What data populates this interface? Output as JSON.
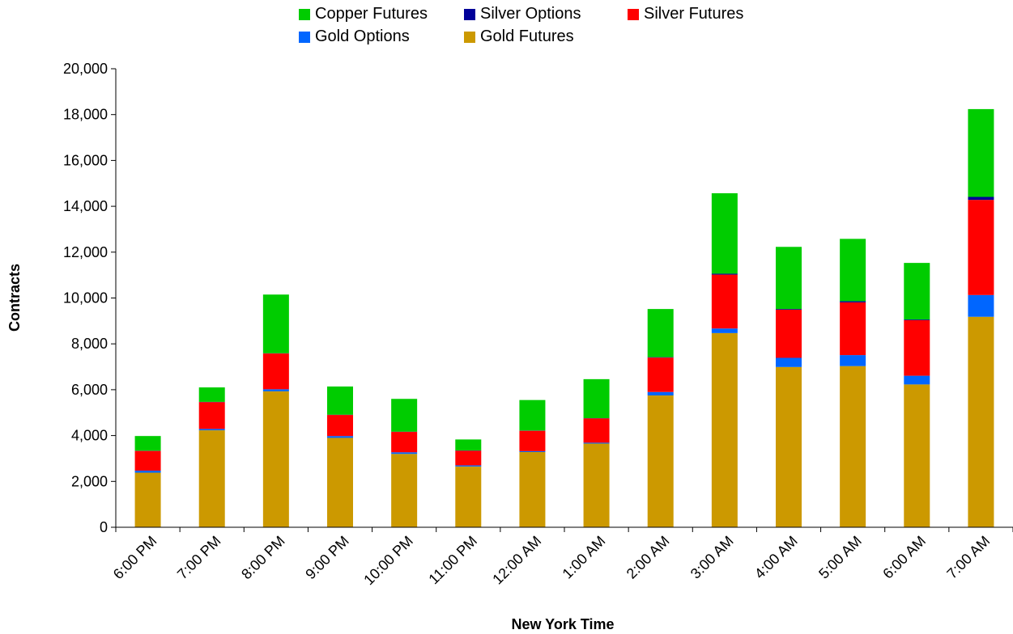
{
  "chart_data": {
    "type": "bar",
    "stacked": true,
    "categories": [
      "6:00 PM",
      "7:00 PM",
      "8:00 PM",
      "9:00 PM",
      "10:00 PM",
      "11:00 PM",
      "12:00 AM",
      "1:00 AM",
      "2:00 AM",
      "3:00 AM",
      "4:00 AM",
      "5:00 AM",
      "6:00 AM",
      "7:00 AM"
    ],
    "series": [
      {
        "name": "Gold Futures",
        "color": "#CC9900",
        "values": [
          2380,
          4230,
          5930,
          3900,
          3200,
          2650,
          3280,
          3650,
          5750,
          8470,
          6990,
          7030,
          6230,
          9180
        ]
      },
      {
        "name": "Gold Options",
        "color": "#0066FF",
        "values": [
          90,
          60,
          90,
          80,
          70,
          50,
          40,
          40,
          150,
          200,
          400,
          480,
          380,
          950
        ]
      },
      {
        "name": "Silver Futures",
        "color": "#FF0000",
        "values": [
          860,
          1170,
          1560,
          920,
          890,
          640,
          890,
          1060,
          1500,
          2350,
          2100,
          2300,
          2420,
          4150
        ]
      },
      {
        "name": "Silver Options",
        "color": "#000099",
        "values": [
          10,
          10,
          10,
          10,
          10,
          10,
          10,
          10,
          20,
          40,
          30,
          50,
          30,
          130
        ]
      },
      {
        "name": "Copper Futures",
        "color": "#00CC00",
        "values": [
          640,
          630,
          2560,
          1230,
          1430,
          480,
          1330,
          1700,
          2100,
          3510,
          2710,
          2720,
          2470,
          3830
        ]
      }
    ],
    "xlabel": "New York Time",
    "ylabel": "Contracts",
    "ylim": [
      0,
      20000
    ],
    "ytick_step": 2000,
    "yticks": [
      "0",
      "2,000",
      "4,000",
      "6,000",
      "8,000",
      "10,000",
      "12,000",
      "14,000",
      "16,000",
      "18,000",
      "20,000"
    ],
    "grid": false,
    "legend_position": "top"
  },
  "legend": [
    {
      "label": "Copper Futures",
      "color": "#00CC00"
    },
    {
      "label": "Silver Options",
      "color": "#000099"
    },
    {
      "label": "Silver Futures",
      "color": "#FF0000"
    },
    {
      "label": "Gold Options",
      "color": "#0066FF"
    },
    {
      "label": "Gold Futures",
      "color": "#CC9900"
    }
  ]
}
